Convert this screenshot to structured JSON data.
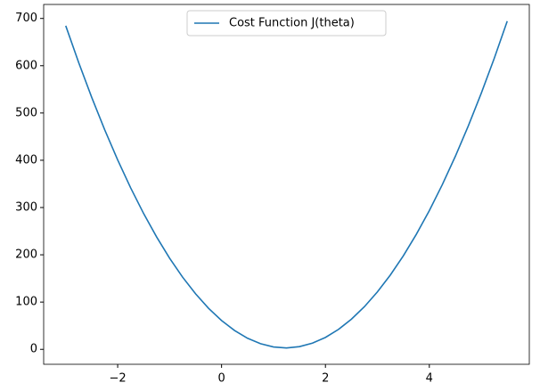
{
  "chart_data": {
    "type": "line",
    "x": [
      -3,
      -2.75,
      -2.5,
      -2.25,
      -2,
      -1.75,
      -1.5,
      -1.25,
      -1,
      -0.75,
      -0.5,
      -0.25,
      0,
      0.25,
      0.5,
      0.75,
      1,
      1.25,
      1.5,
      1.75,
      2,
      2.25,
      2.5,
      2.75,
      3,
      3.25,
      3.5,
      3.75,
      4,
      4.25,
      4.5,
      4.75,
      5,
      5.25,
      5.5
    ],
    "series": [
      {
        "name": "Cost Function J(theta)",
        "color": "#1f77b4",
        "values": [
          684.5,
          606.4,
          533.1,
          464.5,
          400.7,
          341.6,
          287.2,
          237.7,
          192.8,
          152.7,
          117.4,
          86.8,
          61.0,
          39.9,
          23.5,
          11.9,
          5.1,
          3.0,
          5.7,
          13.1,
          25.2,
          42.1,
          63.8,
          90.2,
          121.4,
          157.3,
          197.9,
          243.4,
          293.5,
          348.4,
          408.1,
          472.5,
          541.7,
          615.6,
          694.2
        ]
      }
    ],
    "xlim": [
      -3.425,
      5.925
    ],
    "xticks": [
      {
        "value": -2,
        "label": "−2"
      },
      0,
      2,
      4
    ],
    "ylim": [
      -31.6,
      729.6
    ],
    "yticks": [
      0,
      100,
      200,
      300,
      400,
      500,
      600,
      700
    ],
    "legend": "upper center"
  }
}
